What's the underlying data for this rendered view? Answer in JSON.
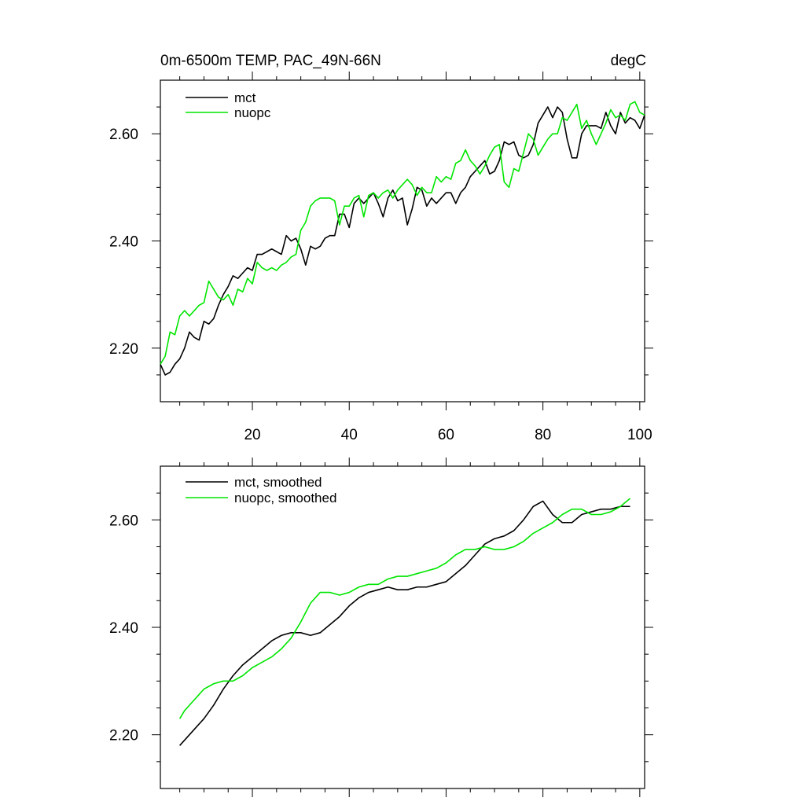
{
  "chart_data": [
    {
      "type": "line",
      "title": "0m-6500m TEMP, PAC_49N-66N",
      "units": "degC",
      "xlabel": "",
      "ylabel": "",
      "xlim": [
        1,
        101
      ],
      "ylim": [
        2.1,
        2.7
      ],
      "xticks": [
        20,
        40,
        60,
        80,
        100
      ],
      "xtick_labels": [
        "20",
        "40",
        "60",
        "80",
        "100"
      ],
      "yticks": [
        2.2,
        2.4,
        2.6
      ],
      "ytick_labels": [
        "2.20",
        "2.40",
        "2.60"
      ],
      "legend_position": "top-left",
      "series": [
        {
          "name": "mct",
          "color": "#000000",
          "x": [
            1,
            2,
            3,
            4,
            5,
            6,
            7,
            8,
            9,
            10,
            11,
            12,
            13,
            14,
            15,
            16,
            17,
            18,
            19,
            20,
            21,
            22,
            23,
            24,
            25,
            26,
            27,
            28,
            29,
            30,
            31,
            32,
            33,
            34,
            35,
            36,
            37,
            38,
            39,
            40,
            41,
            42,
            43,
            44,
            45,
            46,
            47,
            48,
            49,
            50,
            51,
            52,
            53,
            54,
            55,
            56,
            57,
            58,
            59,
            60,
            61,
            62,
            63,
            64,
            65,
            66,
            67,
            68,
            69,
            70,
            71,
            72,
            73,
            74,
            75,
            76,
            77,
            78,
            79,
            80,
            81,
            82,
            83,
            84,
            85,
            86,
            87,
            88,
            89,
            90,
            91,
            92,
            93,
            94,
            95,
            96,
            97,
            98,
            99,
            100,
            101
          ],
          "values": [
            2.17,
            2.15,
            2.155,
            2.17,
            2.18,
            2.2,
            2.23,
            2.22,
            2.215,
            2.25,
            2.245,
            2.255,
            2.28,
            2.3,
            2.315,
            2.335,
            2.33,
            2.34,
            2.35,
            2.345,
            2.375,
            2.375,
            2.38,
            2.385,
            2.38,
            2.375,
            2.41,
            2.4,
            2.405,
            2.385,
            2.355,
            2.39,
            2.385,
            2.39,
            2.405,
            2.41,
            2.41,
            2.45,
            2.45,
            2.425,
            2.47,
            2.48,
            2.47,
            2.48,
            2.49,
            2.47,
            2.445,
            2.48,
            2.495,
            2.475,
            2.48,
            2.43,
            2.46,
            2.5,
            2.495,
            2.465,
            2.48,
            2.47,
            2.48,
            2.49,
            2.49,
            2.47,
            2.49,
            2.5,
            2.52,
            2.53,
            2.54,
            2.55,
            2.525,
            2.53,
            2.55,
            2.585,
            2.58,
            2.585,
            2.56,
            2.555,
            2.56,
            2.58,
            2.62,
            2.635,
            2.65,
            2.63,
            2.65,
            2.64,
            2.59,
            2.555,
            2.555,
            2.6,
            2.615,
            2.615,
            2.615,
            2.61,
            2.64,
            2.615,
            2.6,
            2.64,
            2.62,
            2.63,
            2.625,
            2.61,
            2.635
          ]
        },
        {
          "name": "nuopc",
          "color": "#00e600",
          "x": [
            1,
            2,
            3,
            4,
            5,
            6,
            7,
            8,
            9,
            10,
            11,
            12,
            13,
            14,
            15,
            16,
            17,
            18,
            19,
            20,
            21,
            22,
            23,
            24,
            25,
            26,
            27,
            28,
            29,
            30,
            31,
            32,
            33,
            34,
            35,
            36,
            37,
            38,
            39,
            40,
            41,
            42,
            43,
            44,
            45,
            46,
            47,
            48,
            49,
            50,
            51,
            52,
            53,
            54,
            55,
            56,
            57,
            58,
            59,
            60,
            61,
            62,
            63,
            64,
            65,
            66,
            67,
            68,
            69,
            70,
            71,
            72,
            73,
            74,
            75,
            76,
            77,
            78,
            79,
            80,
            81,
            82,
            83,
            84,
            85,
            86,
            87,
            88,
            89,
            90,
            91,
            92,
            93,
            94,
            95,
            96,
            97,
            98,
            99,
            100,
            101
          ],
          "values": [
            2.17,
            2.185,
            2.23,
            2.225,
            2.26,
            2.27,
            2.26,
            2.27,
            2.28,
            2.285,
            2.325,
            2.31,
            2.295,
            2.29,
            2.3,
            2.28,
            2.31,
            2.305,
            2.33,
            2.32,
            2.36,
            2.35,
            2.345,
            2.35,
            2.345,
            2.355,
            2.36,
            2.37,
            2.375,
            2.42,
            2.435,
            2.465,
            2.475,
            2.48,
            2.48,
            2.48,
            2.475,
            2.43,
            2.465,
            2.465,
            2.48,
            2.485,
            2.445,
            2.485,
            2.49,
            2.48,
            2.49,
            2.495,
            2.48,
            2.495,
            2.505,
            2.515,
            2.505,
            2.485,
            2.5,
            2.49,
            2.49,
            2.52,
            2.51,
            2.52,
            2.515,
            2.545,
            2.55,
            2.57,
            2.55,
            2.54,
            2.525,
            2.54,
            2.56,
            2.575,
            2.58,
            2.51,
            2.5,
            2.535,
            2.53,
            2.565,
            2.6,
            2.59,
            2.56,
            2.575,
            2.59,
            2.6,
            2.6,
            2.63,
            2.625,
            2.64,
            2.655,
            2.61,
            2.625,
            2.6,
            2.58,
            2.6,
            2.62,
            2.645,
            2.63,
            2.635,
            2.625,
            2.655,
            2.66,
            2.64,
            2.635
          ]
        }
      ]
    },
    {
      "type": "line",
      "title": "",
      "xlabel": "",
      "ylabel": "",
      "xlim": [
        1,
        101
      ],
      "ylim": [
        2.1,
        2.7
      ],
      "xticks": [
        20,
        40,
        60,
        80,
        100
      ],
      "yticks": [
        2.2,
        2.4,
        2.6
      ],
      "ytick_labels": [
        "2.20",
        "2.40",
        "2.60"
      ],
      "legend_position": "top-left",
      "series": [
        {
          "name": "mct, smoothed",
          "color": "#000000",
          "x": [
            5,
            8,
            10,
            12,
            14,
            16,
            18,
            20,
            22,
            24,
            26,
            28,
            30,
            32,
            34,
            36,
            38,
            40,
            42,
            44,
            46,
            48,
            50,
            52,
            54,
            56,
            58,
            60,
            62,
            64,
            66,
            68,
            70,
            72,
            74,
            76,
            78,
            80,
            82,
            84,
            86,
            88,
            90,
            92,
            94,
            96,
            98
          ],
          "values": [
            2.18,
            2.21,
            2.23,
            2.255,
            2.285,
            2.31,
            2.33,
            2.345,
            2.36,
            2.375,
            2.385,
            2.39,
            2.39,
            2.385,
            2.39,
            2.405,
            2.42,
            2.44,
            2.455,
            2.465,
            2.47,
            2.475,
            2.47,
            2.47,
            2.475,
            2.475,
            2.48,
            2.485,
            2.5,
            2.515,
            2.535,
            2.555,
            2.565,
            2.57,
            2.58,
            2.6,
            2.625,
            2.635,
            2.61,
            2.595,
            2.595,
            2.61,
            2.615,
            2.62,
            2.62,
            2.625,
            2.625
          ]
        },
        {
          "name": "nuopc, smoothed",
          "color": "#00e600",
          "x": [
            5,
            6,
            8,
            10,
            12,
            14,
            16,
            18,
            20,
            22,
            24,
            26,
            28,
            30,
            32,
            34,
            36,
            38,
            40,
            42,
            44,
            46,
            48,
            50,
            52,
            54,
            56,
            58,
            60,
            62,
            64,
            66,
            68,
            70,
            72,
            74,
            76,
            78,
            80,
            82,
            84,
            86,
            88,
            90,
            92,
            94,
            96,
            98
          ],
          "values": [
            2.23,
            2.245,
            2.265,
            2.285,
            2.295,
            2.3,
            2.3,
            2.31,
            2.325,
            2.335,
            2.345,
            2.36,
            2.38,
            2.41,
            2.445,
            2.465,
            2.465,
            2.46,
            2.465,
            2.475,
            2.48,
            2.48,
            2.49,
            2.495,
            2.495,
            2.5,
            2.505,
            2.51,
            2.52,
            2.535,
            2.545,
            2.545,
            2.55,
            2.545,
            2.545,
            2.55,
            2.56,
            2.575,
            2.585,
            2.595,
            2.61,
            2.62,
            2.62,
            2.61,
            2.61,
            2.615,
            2.625,
            2.64
          ]
        }
      ]
    }
  ]
}
